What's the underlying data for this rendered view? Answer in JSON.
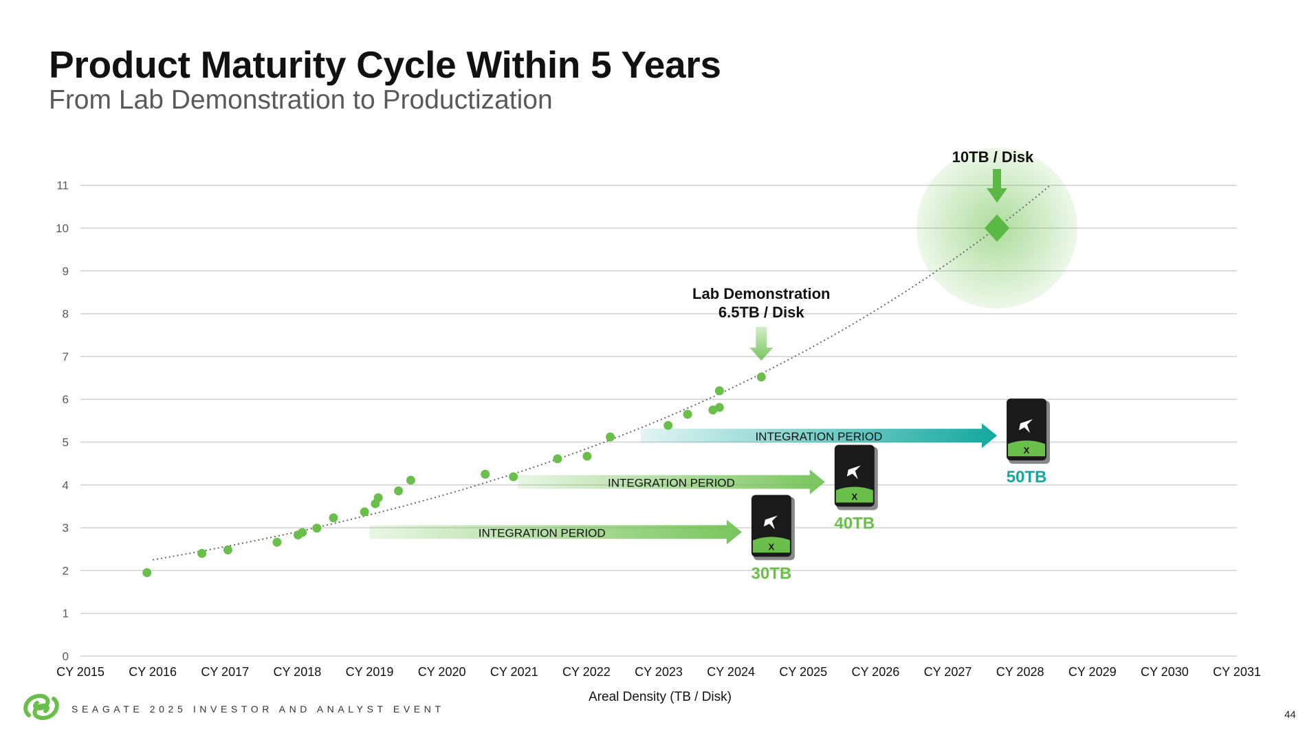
{
  "header": {
    "title": "Product Maturity Cycle Within 5 Years",
    "subtitle": "From Lab Demonstration to Productization"
  },
  "chart_data": {
    "type": "scatter",
    "xlabel": "Areal Density (TB / Disk)",
    "ylabel": "",
    "x_ticks": [
      "CY 2015",
      "CY 2016",
      "CY 2017",
      "CY 2018",
      "CY 2019",
      "CY 2020",
      "CY 2021",
      "CY 2022",
      "CY 2023",
      "CY 2024",
      "CY 2025",
      "CY 2026",
      "CY 2027",
      "CY 2028",
      "CY 2029",
      "CY 2030",
      "CY 2031"
    ],
    "xlim": [
      2015,
      2031
    ],
    "y_ticks": [
      "0",
      "1",
      "2",
      "3",
      "4",
      "5",
      "6",
      "7",
      "8",
      "9",
      "10",
      "11"
    ],
    "ylim": [
      0,
      11
    ],
    "grid": "horizontal",
    "trendline": "exponential, dotted",
    "colors": {
      "points": "#6abf4b",
      "teal": "#13a89e",
      "grid": "#d0d0d0"
    },
    "points": [
      {
        "x": 2015.92,
        "y": 1.95
      },
      {
        "x": 2016.68,
        "y": 2.4
      },
      {
        "x": 2017.04,
        "y": 2.48
      },
      {
        "x": 2017.72,
        "y": 2.66
      },
      {
        "x": 2018.01,
        "y": 2.83
      },
      {
        "x": 2018.07,
        "y": 2.89
      },
      {
        "x": 2018.27,
        "y": 2.99
      },
      {
        "x": 2018.5,
        "y": 3.23
      },
      {
        "x": 2018.93,
        "y": 3.37
      },
      {
        "x": 2019.08,
        "y": 3.56
      },
      {
        "x": 2019.12,
        "y": 3.7
      },
      {
        "x": 2019.4,
        "y": 3.86
      },
      {
        "x": 2019.57,
        "y": 4.11
      },
      {
        "x": 2020.6,
        "y": 4.25
      },
      {
        "x": 2020.99,
        "y": 4.19
      },
      {
        "x": 2021.6,
        "y": 4.61
      },
      {
        "x": 2022.01,
        "y": 4.67
      },
      {
        "x": 2022.33,
        "y": 5.12
      },
      {
        "x": 2023.13,
        "y": 5.39
      },
      {
        "x": 2023.4,
        "y": 5.65
      },
      {
        "x": 2023.75,
        "y": 5.75
      },
      {
        "x": 2023.84,
        "y": 5.81
      },
      {
        "x": 2023.84,
        "y": 6.2
      },
      {
        "x": 2024.42,
        "y": 6.52
      }
    ],
    "target": {
      "x": 2027.68,
      "y": 10,
      "label": "10TB / Disk",
      "marker": "diamond"
    },
    "lab_demo": {
      "x": 2024.42,
      "y": 6.52,
      "line1": "Lab Demonstration",
      "line2": "6.5TB / Disk"
    },
    "integration_periods": [
      {
        "label": "INTEGRATION PERIOD",
        "from": 2019.0,
        "to": 2024.15,
        "y": 2.9,
        "product": "30TB",
        "color": "#6abf4b"
      },
      {
        "label": "INTEGRATION PERIOD",
        "from": 2021.05,
        "to": 2025.3,
        "y": 4.07,
        "product": "40TB",
        "color": "#6abf4b"
      },
      {
        "label": "INTEGRATION PERIOD",
        "from": 2022.75,
        "to": 2027.68,
        "y": 5.15,
        "product": "50TB",
        "color": "#13a89e"
      }
    ]
  },
  "footer": {
    "event": "SEAGATE 2025 INVESTOR AND ANALYST EVENT",
    "page": "44",
    "logo": "seagate-logo"
  }
}
